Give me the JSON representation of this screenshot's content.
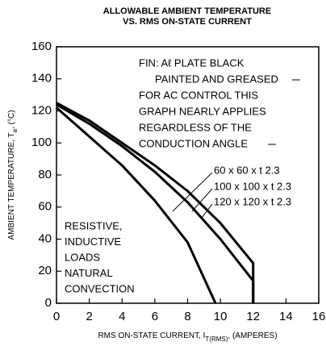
{
  "chart_data": {
    "type": "line",
    "title": [
      "ALLOWABLE AMBIENT TEMPERATURE",
      "VS. RMS ON-STATE CURRENT"
    ],
    "xlabel": [
      "RMS ON-STATE CURRENT, I",
      "T(RMS)",
      ", (AMPERES)"
    ],
    "ylabel": [
      "AMBIENT TEMPERATURE, T",
      "a",
      ", (°C)"
    ],
    "xlim": [
      0,
      16
    ],
    "xticks": [
      0,
      2,
      4,
      6,
      8,
      10,
      12,
      14,
      16
    ],
    "ylim": [
      0,
      160
    ],
    "yticks": [
      0,
      20,
      40,
      60,
      80,
      100,
      120,
      140,
      160
    ],
    "color": "#000000",
    "series": [
      {
        "name": "60 x 60 x t 2.3",
        "x": [
          0,
          2,
          4,
          6,
          8,
          9.7
        ],
        "values": [
          122,
          104,
          86,
          64,
          38,
          0
        ]
      },
      {
        "name": "100 x 100 x t 2.3",
        "x": [
          0,
          2,
          4,
          6,
          8,
          10,
          12,
          12
        ],
        "values": [
          124,
          112,
          98,
          82,
          63,
          40,
          14,
          0
        ]
      },
      {
        "name": "120 x 120 x t 2.3",
        "x": [
          0,
          2,
          4,
          6,
          8,
          10,
          12,
          12
        ],
        "values": [
          125,
          114,
          100,
          86,
          70,
          50,
          25,
          0
        ]
      }
    ],
    "annotations": [
      [
        "FIN: Aℓ PLATE BLACK",
        "PAINTED AND GREASED",
        "FOR AC CONTROL THIS",
        "GRAPH NEARLY APPLIES",
        "REGARDLESS OF THE",
        "CONDUCTION ANGLE"
      ],
      [
        "RESISTIVE,",
        "INDUCTIVE",
        "LOADS",
        "NATURAL",
        "CONVECTION"
      ]
    ]
  }
}
